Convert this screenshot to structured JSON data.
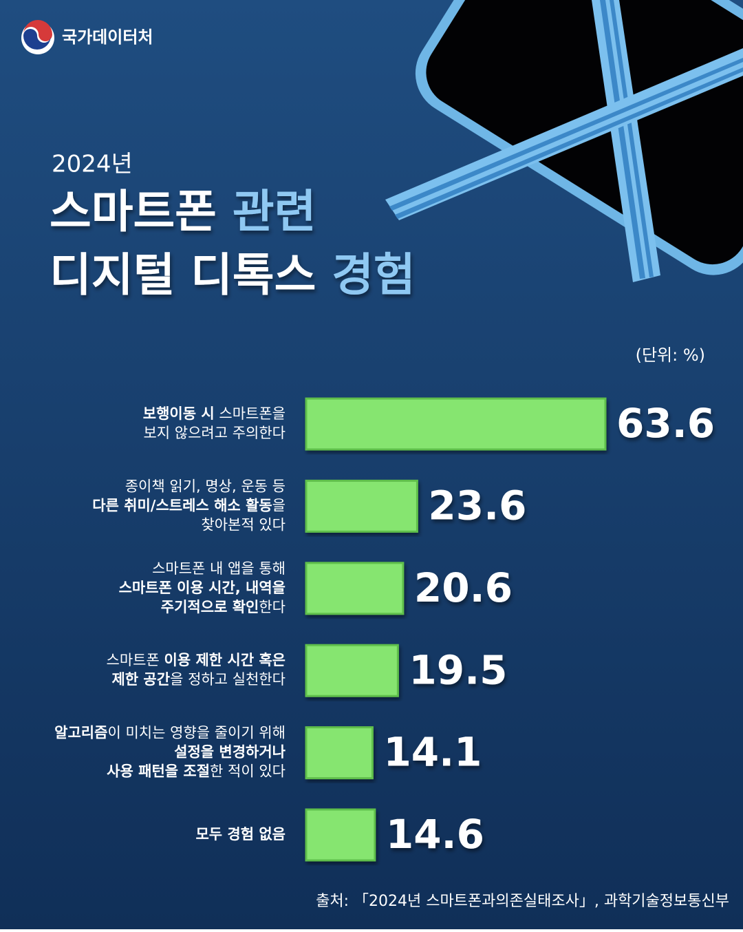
{
  "header": {
    "logo": "국가데이터처"
  },
  "chart_data": {
    "type": "hbar",
    "subtitle": "2024년",
    "title": [
      [
        {
          "text": "스마트폰 "
        },
        {
          "text": "관련",
          "highlight": true
        }
      ],
      [
        {
          "text": "디지털 디톡스 "
        },
        {
          "text": "경험",
          "highlight": true
        }
      ]
    ],
    "highlight_color": "#8fc8f2",
    "unit": "(단위: %)",
    "categories": [
      [
        [
          {
            "text": "보행이동 시",
            "bold": true
          },
          {
            "text": " 스마트폰을"
          }
        ],
        [
          {
            "text": "보지 않으려고 주의한다"
          }
        ]
      ],
      [
        [
          {
            "text": "종이책 읽기, 명상, 운동 등"
          }
        ],
        [
          {
            "text": "다른 취미/스트레스 해소 활동",
            "bold": true
          },
          {
            "text": "을"
          }
        ],
        [
          {
            "text": "찾아본적 있다"
          }
        ]
      ],
      [
        [
          {
            "text": "스마트폰 내 앱을 통해"
          }
        ],
        [
          {
            "text": "스마트폰 이용 시간, 내역을",
            "bold": true
          }
        ],
        [
          {
            "text": "주기적으로 확인",
            "bold": true
          },
          {
            "text": "한다"
          }
        ]
      ],
      [
        [
          {
            "text": "스마트폰 "
          },
          {
            "text": "이용 제한 시간 혹은",
            "bold": true
          }
        ],
        [
          {
            "text": "제한 공간",
            "bold": true
          },
          {
            "text": "을 정하고 실천한다"
          }
        ]
      ],
      [
        [
          {
            "text": "알고리즘",
            "bold": true
          },
          {
            "text": "이 미치는 영향을 줄이기 위해"
          }
        ],
        [
          {
            "text": "설정을 변경하거나",
            "bold": true
          }
        ],
        [
          {
            "text": "사용 패턴을 조절",
            "bold": true
          },
          {
            "text": "한 적이 있다"
          }
        ]
      ],
      [
        [
          {
            "text": "모두 경험 없음",
            "bold": true
          }
        ]
      ]
    ],
    "values": [
      63.6,
      23.6,
      20.6,
      19.5,
      14.1,
      14.6
    ],
    "color": "#86e56f",
    "source": "출처: 「2024년 스마트폰과의존실태조사」, 과학기술정보통신부"
  }
}
